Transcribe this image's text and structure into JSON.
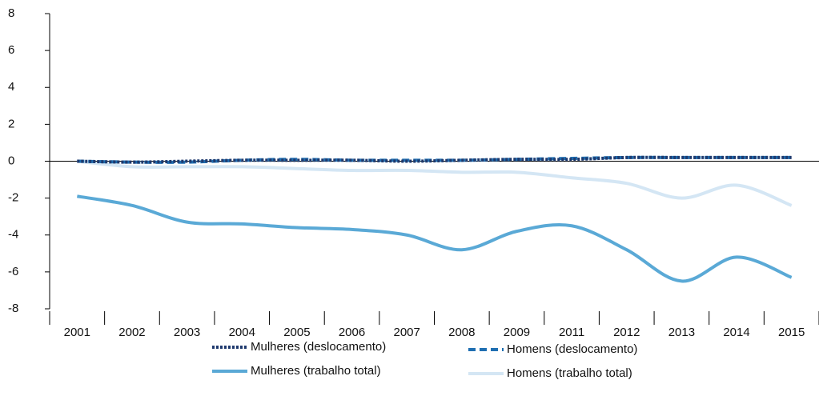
{
  "chart_data": {
    "type": "line",
    "categories": [
      "2001",
      "2002",
      "2003",
      "2004",
      "2005",
      "2006",
      "2007",
      "2008",
      "2009",
      "2011",
      "2012",
      "2013",
      "2014",
      "2015"
    ],
    "ylim": [
      -8,
      8
    ],
    "yticks": [
      -8,
      -6,
      -4,
      -2,
      0,
      2,
      4,
      6,
      8
    ],
    "series": [
      {
        "name": "Mulheres (deslocamento)",
        "color": "#1f3a6e",
        "dash": "dotted",
        "values": [
          0,
          -0.05,
          0,
          0.05,
          0.05,
          0.05,
          0,
          0.05,
          0.1,
          0.1,
          0.2,
          0.2,
          0.2,
          0.2
        ]
      },
      {
        "name": "Homens (deslocamento)",
        "color": "#1f6fb2",
        "dash": "dashed",
        "values": [
          0,
          -0.05,
          -0.05,
          0.05,
          0.1,
          0.05,
          0.05,
          0.05,
          0.1,
          0.15,
          0.2,
          0.2,
          0.2,
          0.2
        ]
      },
      {
        "name": "Mulheres (trabalho total)",
        "color": "#5aa9d6",
        "dash": "solid",
        "values": [
          -1.9,
          -2.4,
          -3.3,
          -3.4,
          -3.6,
          -3.7,
          -4.0,
          -4.8,
          -3.8,
          -3.5,
          -4.8,
          -6.5,
          -5.2,
          -6.3
        ]
      },
      {
        "name": "Homens (trabalho total)",
        "color": "#d4e6f4",
        "dash": "solid",
        "values": [
          0,
          -0.3,
          -0.3,
          -0.3,
          -0.4,
          -0.5,
          -0.5,
          -0.6,
          -0.6,
          -0.9,
          -1.2,
          -2.0,
          -1.3,
          -2.4
        ]
      }
    ]
  }
}
